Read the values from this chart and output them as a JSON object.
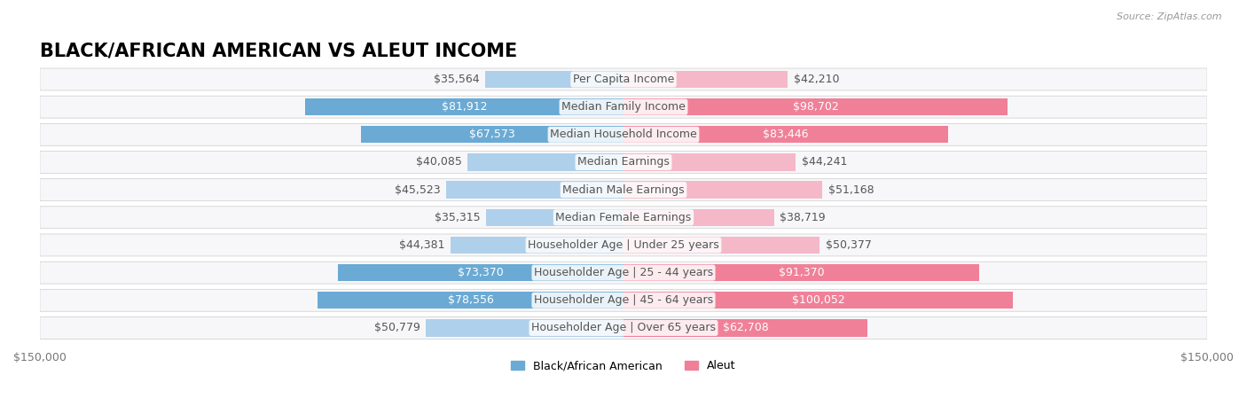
{
  "title": "BLACK/AFRICAN AMERICAN VS ALEUT INCOME",
  "source": "Source: ZipAtlas.com",
  "categories": [
    "Per Capita Income",
    "Median Family Income",
    "Median Household Income",
    "Median Earnings",
    "Median Male Earnings",
    "Median Female Earnings",
    "Householder Age | Under 25 years",
    "Householder Age | 25 - 44 years",
    "Householder Age | 45 - 64 years",
    "Householder Age | Over 65 years"
  ],
  "black_values": [
    35564,
    81912,
    67573,
    40085,
    45523,
    35315,
    44381,
    73370,
    78556,
    50779
  ],
  "aleut_values": [
    42210,
    98702,
    83446,
    44241,
    51168,
    38719,
    50377,
    91370,
    100052,
    62708
  ],
  "black_labels": [
    "$35,564",
    "$81,912",
    "$67,573",
    "$40,085",
    "$45,523",
    "$35,315",
    "$44,381",
    "$73,370",
    "$78,556",
    "$50,779"
  ],
  "aleut_labels": [
    "$42,210",
    "$98,702",
    "$83,446",
    "$44,241",
    "$51,168",
    "$38,719",
    "$50,377",
    "$91,370",
    "$100,052",
    "$62,708"
  ],
  "black_color_dark": "#6aaad4",
  "black_color_light": "#aed0eb",
  "aleut_color_dark": "#f08098",
  "aleut_color_light": "#f5b8c8",
  "bar_bg_color": "#f0f0f4",
  "row_bg_color": "#f7f7fa",
  "max_value": 150000,
  "legend_black": "Black/African American",
  "legend_aleut": "Aleut",
  "title_fontsize": 15,
  "label_fontsize": 9,
  "category_fontsize": 9
}
